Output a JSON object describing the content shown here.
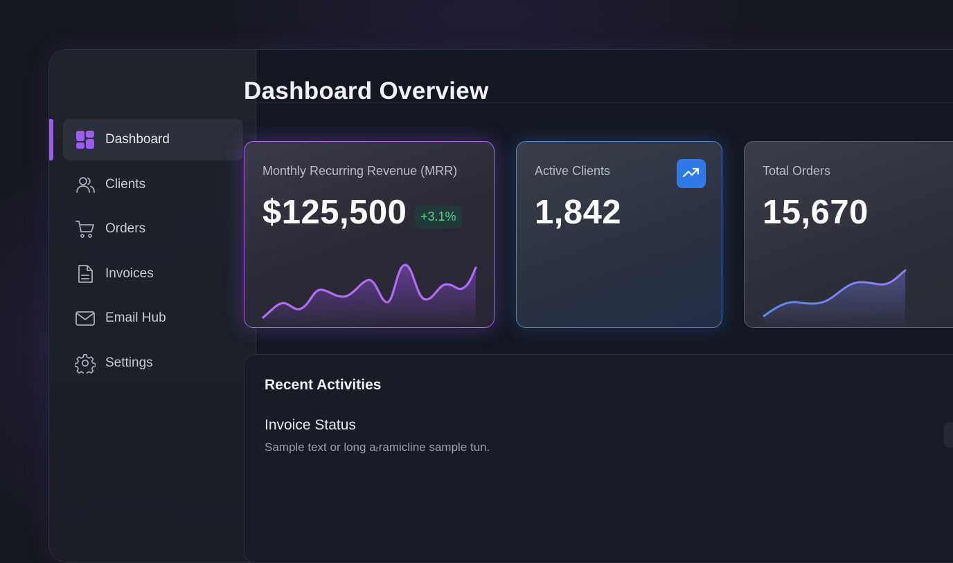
{
  "sidebar": {
    "items": [
      {
        "label": "Dashboard",
        "icon": "dashboard-grid-icon",
        "active": true
      },
      {
        "label": "Clients",
        "icon": "users-icon",
        "active": false
      },
      {
        "label": "Orders",
        "icon": "cart-icon",
        "active": false
      },
      {
        "label": "Invoices",
        "icon": "document-icon",
        "active": false
      },
      {
        "label": "Email Hub",
        "icon": "mail-icon",
        "active": false
      },
      {
        "label": "Settings",
        "icon": "gear-icon",
        "active": false
      }
    ]
  },
  "main": {
    "title": "Dashboard Overview",
    "cards": {
      "mrr": {
        "label": "Monthly Recurring Revenue (MRR)",
        "value": "$125,500",
        "change": "+3.1%",
        "accent": "#a864f0"
      },
      "clients": {
        "label": "Active Clients",
        "value": "1,842",
        "icon": "trending-up-icon",
        "accent": "#2f7ae8"
      },
      "orders": {
        "label": "Total Orders",
        "value": "15,670",
        "accent": "#7b8ff0"
      }
    },
    "activities": {
      "title": "Recent Activities",
      "items": [
        {
          "title": "Invoice Status",
          "description": "Sample text or long aᵣramicline sample tun."
        }
      ]
    }
  },
  "colors": {
    "background": "#151820",
    "active_accent": "#9b5cf0",
    "positive": "#4fd386"
  }
}
